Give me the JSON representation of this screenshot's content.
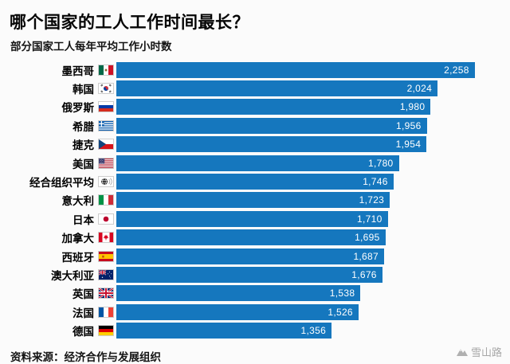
{
  "title": "哪个国家的工人工作时间最长？",
  "subtitle": "部分国家工人每年平均工作小时数",
  "source": "资料来源：经济合作与发展组织",
  "watermark": {
    "text": "雪山路"
  },
  "chart_data": {
    "type": "bar",
    "orientation": "horizontal",
    "title": "哪个国家的工人工作时间最长？",
    "subtitle": "部分国家工人每年平均工作小时数",
    "categories": [
      "墨西哥",
      "韩国",
      "俄罗斯",
      "希腊",
      "捷克",
      "美国",
      "经合组织平均",
      "意大利",
      "日本",
      "加拿大",
      "西班牙",
      "澳大利亚",
      "英国",
      "法国",
      "德国"
    ],
    "values": [
      2258,
      2024,
      1980,
      1956,
      1954,
      1780,
      1746,
      1723,
      1710,
      1695,
      1687,
      1676,
      1538,
      1526,
      1356
    ],
    "value_labels": [
      "2,258",
      "2,024",
      "1,980",
      "1,956",
      "1,954",
      "1,780",
      "1,746",
      "1,723",
      "1,710",
      "1,695",
      "1,687",
      "1,676",
      "1,538",
      "1,526",
      "1,356"
    ],
    "icons": [
      "flag-mexico",
      "flag-south-korea",
      "flag-russia",
      "flag-greece",
      "flag-czech",
      "flag-usa",
      "globe-oecd",
      "flag-italy",
      "flag-japan",
      "flag-canada",
      "flag-spain",
      "flag-australia",
      "flag-uk",
      "flag-france",
      "flag-germany"
    ],
    "xlabel": "",
    "ylabel": "",
    "xlim": [
      0,
      2400
    ],
    "grid": false,
    "legend": false,
    "bar_color": "#1577be",
    "value_label_color": "#ffffff"
  }
}
